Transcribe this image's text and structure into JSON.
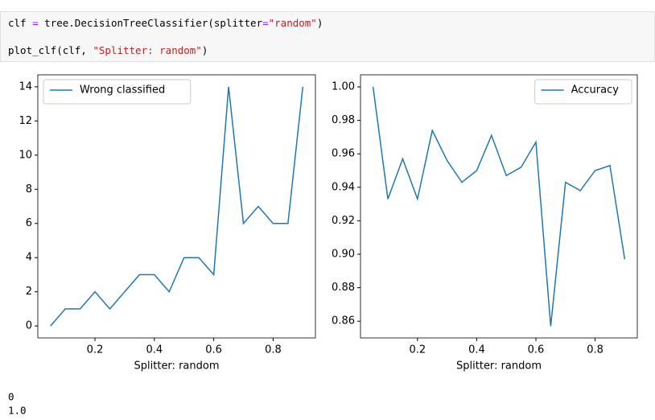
{
  "code": [
    "clf = tree.DecisionTreeClassifier(splitter=\"random\")",
    "plot_clf(clf, \"Splitter: random\")"
  ],
  "chart_data": [
    {
      "type": "line",
      "xlabel": "Splitter: random",
      "legend": "upper left",
      "x": [
        0.05,
        0.1,
        0.15,
        0.2,
        0.25,
        0.3,
        0.35,
        0.4,
        0.45,
        0.5,
        0.55,
        0.6,
        0.65,
        0.7,
        0.75,
        0.8,
        0.85,
        0.9
      ],
      "series": [
        {
          "name": "Wrong classified",
          "color": "#1f77b4",
          "values": [
            0,
            1,
            1,
            2,
            1,
            2,
            3,
            3,
            2,
            4,
            4,
            3,
            14,
            6,
            7,
            6,
            6,
            14
          ]
        }
      ],
      "xlim": [
        0.0075,
        0.9425
      ],
      "xticks": [
        0.2,
        0.4,
        0.6,
        0.8
      ],
      "ylim": [
        -0.7,
        14.7
      ],
      "yticks": [
        0,
        2,
        4,
        6,
        8,
        10,
        12,
        14
      ]
    },
    {
      "type": "line",
      "xlabel": "Splitter: random",
      "legend": "upper right",
      "x": [
        0.05,
        0.1,
        0.15,
        0.2,
        0.25,
        0.3,
        0.35,
        0.4,
        0.45,
        0.5,
        0.55,
        0.6,
        0.65,
        0.7,
        0.75,
        0.8,
        0.85,
        0.9
      ],
      "series": [
        {
          "name": "Accuracy",
          "color": "#1f77b4",
          "values": [
            1.0,
            0.933,
            0.957,
            0.933,
            0.974,
            0.956,
            0.943,
            0.95,
            0.971,
            0.947,
            0.952,
            0.967,
            0.857,
            0.943,
            0.938,
            0.95,
            0.953,
            0.897
          ]
        }
      ],
      "xlim": [
        0.0075,
        0.9425
      ],
      "xticks": [
        0.2,
        0.4,
        0.6,
        0.8
      ],
      "ylim": [
        0.85,
        1.0072
      ],
      "yticks": [
        {
          "value": 0.86,
          "label": "0.86"
        },
        {
          "value": 0.88,
          "label": "0.88"
        },
        {
          "value": 0.9,
          "label": "0.90"
        },
        {
          "value": 0.92,
          "label": "0.92"
        },
        {
          "value": 0.94,
          "label": "0.94"
        },
        {
          "value": 0.96,
          "label": "0.96"
        },
        {
          "value": 0.98,
          "label": "0.98"
        },
        {
          "value": 1.0,
          "label": "1.00"
        }
      ]
    }
  ],
  "output": [
    "0",
    "1.0"
  ]
}
